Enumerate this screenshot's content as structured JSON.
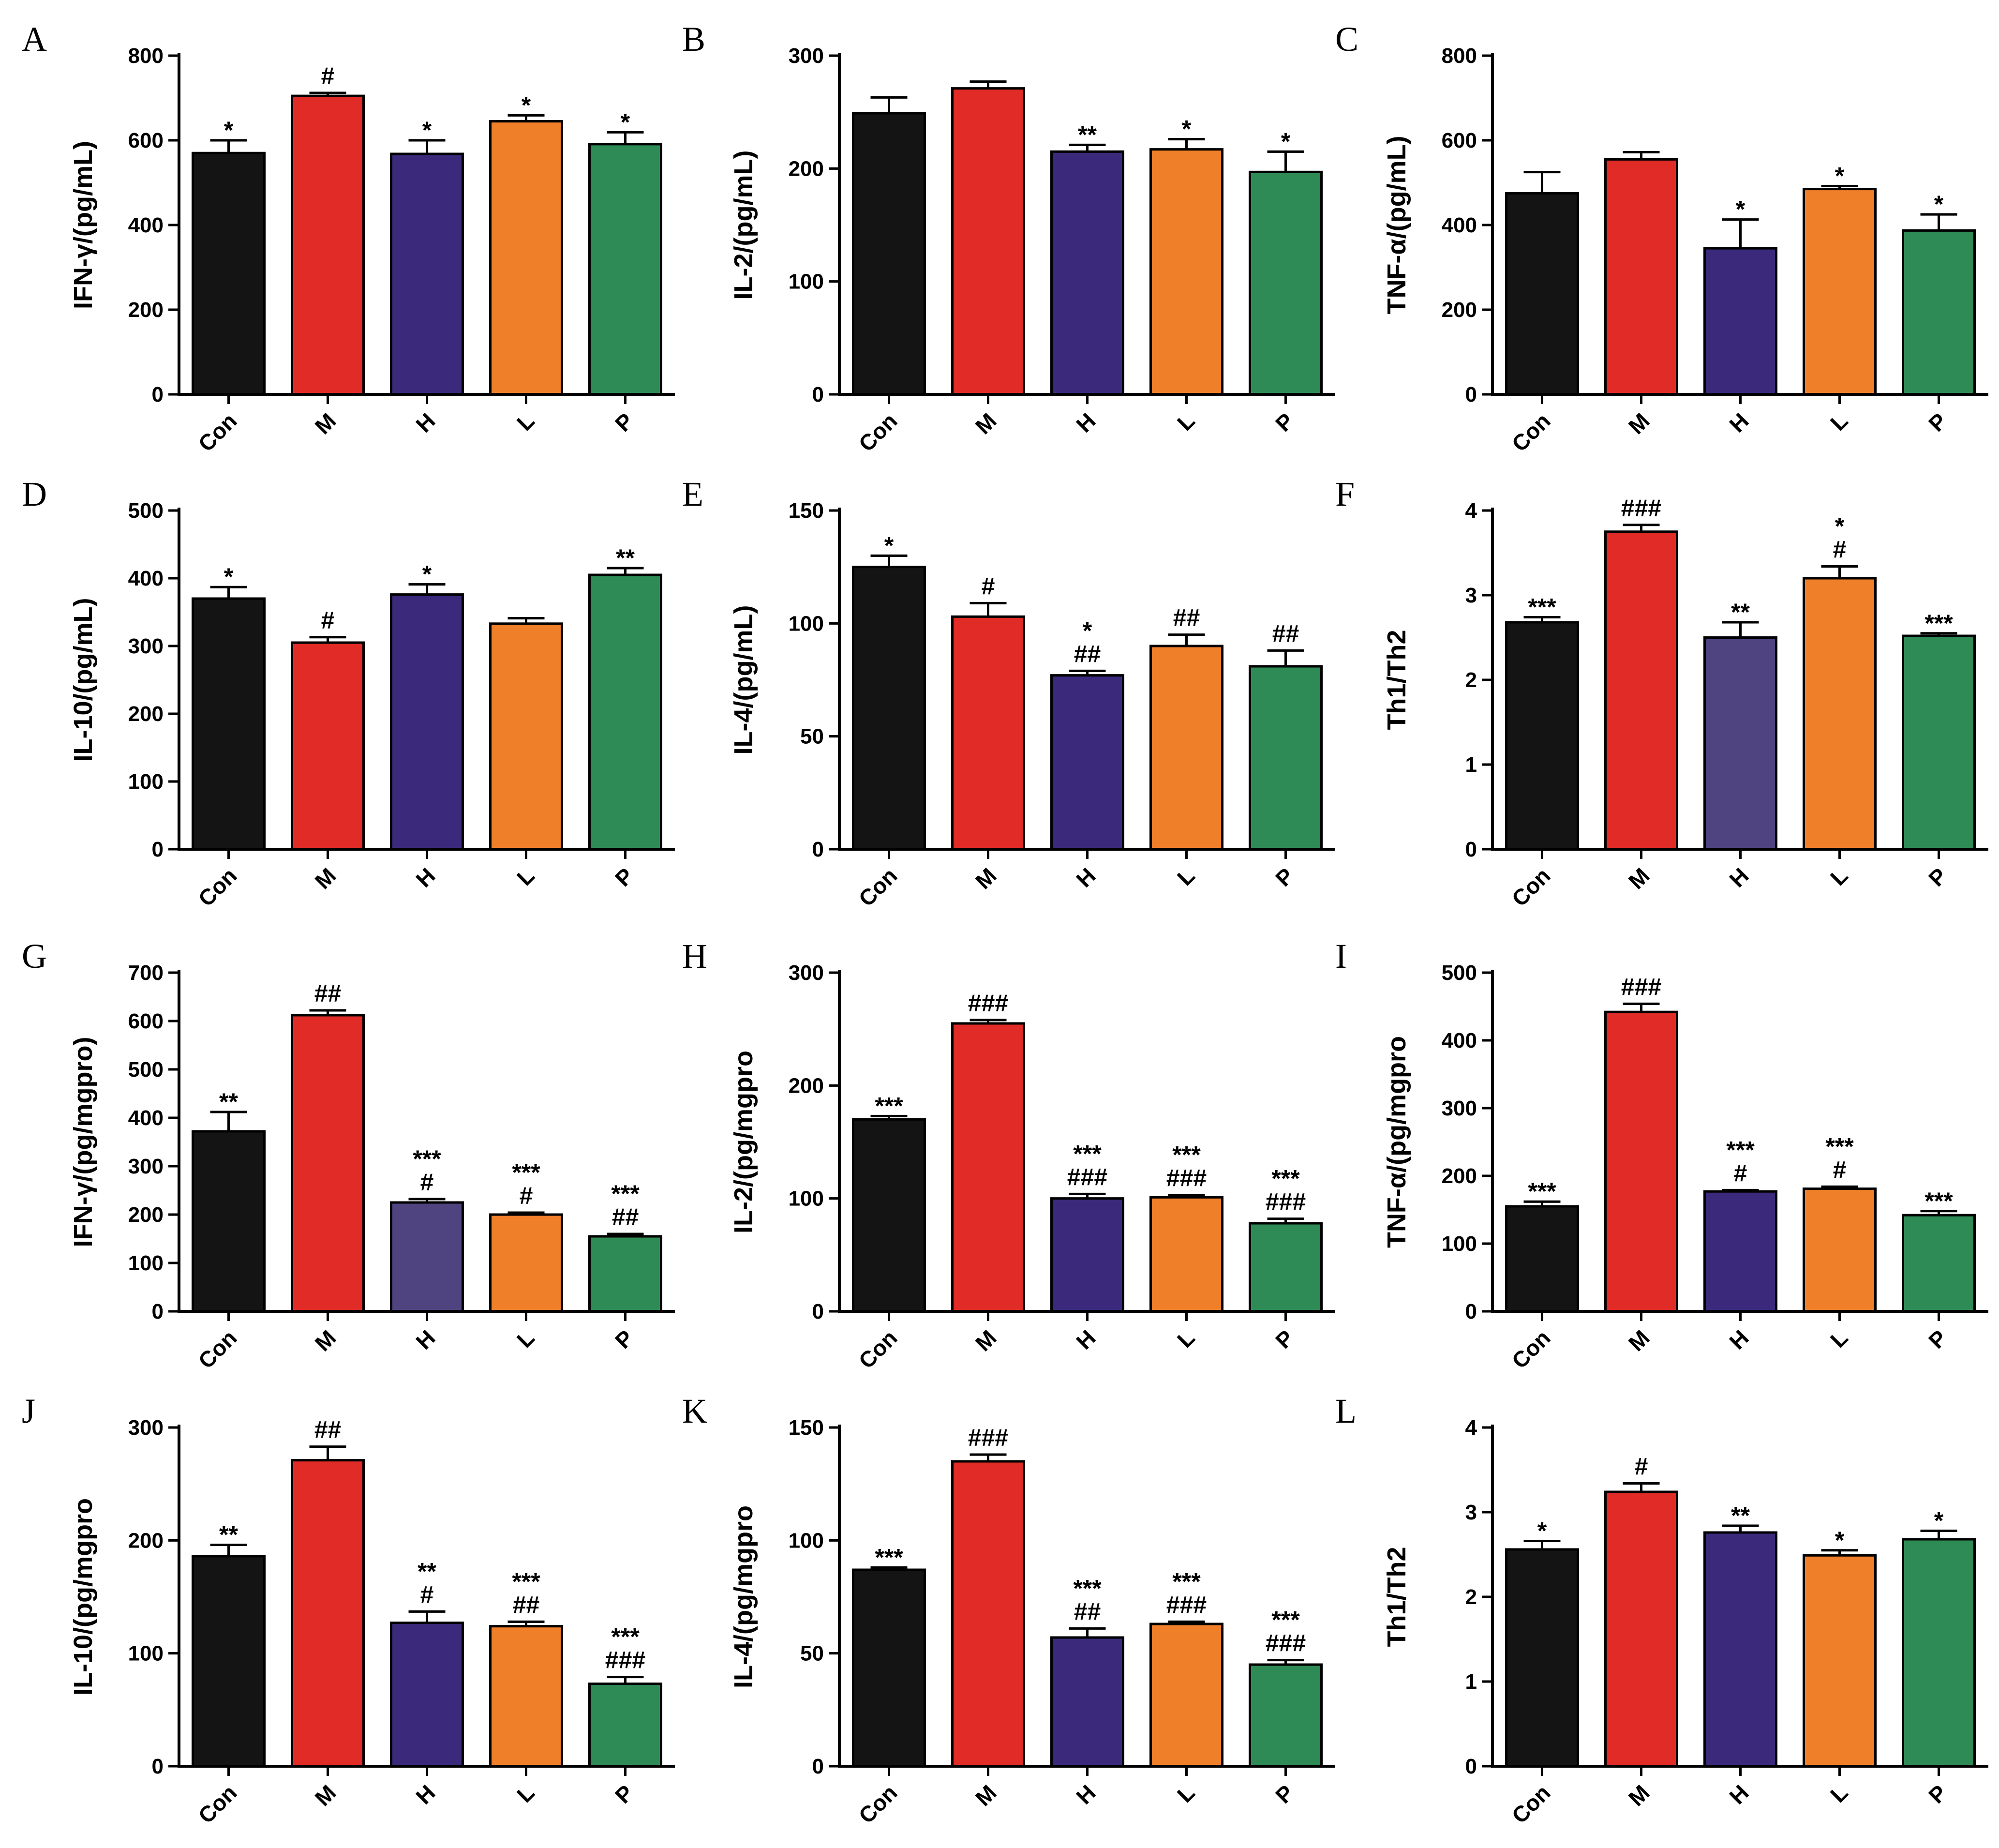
{
  "chart_data": [
    {
      "type": "bar",
      "panel": "A",
      "ylabel": "IFN-γ/(pg/mL)",
      "categories": [
        "Con",
        "M",
        "H",
        "L",
        "P"
      ],
      "values": [
        570,
        705,
        568,
        645,
        591
      ],
      "errors": [
        30,
        7,
        32,
        14,
        28
      ],
      "annotations": [
        [
          "*"
        ],
        [
          "#"
        ],
        [
          "*"
        ],
        [
          "*"
        ],
        [
          "*"
        ]
      ],
      "ylim": [
        0,
        800
      ],
      "yticks": [
        0,
        200,
        400,
        600,
        800
      ]
    },
    {
      "type": "bar",
      "panel": "B",
      "ylabel": "IL-2/(pg/mL)",
      "categories": [
        "Con",
        "M",
        "H",
        "L",
        "P"
      ],
      "values": [
        249,
        271,
        215,
        217,
        197
      ],
      "errors": [
        14,
        6,
        6,
        9,
        18
      ],
      "annotations": [
        [],
        [],
        [
          "**"
        ],
        [
          "*"
        ],
        [
          "*"
        ]
      ],
      "ylim": [
        0,
        300
      ],
      "yticks": [
        0,
        100,
        200,
        300
      ]
    },
    {
      "type": "bar",
      "panel": "C",
      "ylabel": "TNF-α/(pg/mL)",
      "categories": [
        "Con",
        "M",
        "H",
        "L",
        "P"
      ],
      "values": [
        475,
        555,
        345,
        485,
        387
      ],
      "errors": [
        50,
        17,
        68,
        7,
        38
      ],
      "annotations": [
        [],
        [],
        [
          "*"
        ],
        [
          "*"
        ],
        [
          "*"
        ]
      ],
      "ylim": [
        0,
        800
      ],
      "yticks": [
        0,
        200,
        400,
        600,
        800
      ]
    },
    {
      "type": "bar",
      "panel": "D",
      "ylabel": "IL-10/(pg/mL)",
      "categories": [
        "Con",
        "M",
        "H",
        "L",
        "P"
      ],
      "values": [
        370,
        305,
        376,
        333,
        405
      ],
      "errors": [
        17,
        8,
        15,
        8,
        10
      ],
      "annotations": [
        [
          "*"
        ],
        [
          "#"
        ],
        [
          "*"
        ],
        [],
        [
          "**"
        ]
      ],
      "ylim": [
        0,
        500
      ],
      "yticks": [
        0,
        100,
        200,
        300,
        400,
        500
      ]
    },
    {
      "type": "bar",
      "panel": "E",
      "ylabel": "IL-4/(pg/mL)",
      "categories": [
        "Con",
        "M",
        "H",
        "L",
        "P"
      ],
      "values": [
        125,
        103,
        77,
        90,
        81
      ],
      "errors": [
        5,
        6,
        2,
        5,
        7
      ],
      "annotations": [
        [
          "*"
        ],
        [
          "#"
        ],
        [
          "*",
          "##"
        ],
        [
          "##"
        ],
        [
          "##"
        ]
      ],
      "ylim": [
        0,
        150
      ],
      "yticks": [
        0,
        50,
        100,
        150
      ]
    },
    {
      "type": "bar",
      "panel": "F",
      "ylabel": "Th1/Th2",
      "categories": [
        "Con",
        "M",
        "H",
        "L",
        "P"
      ],
      "values": [
        2.68,
        3.75,
        2.5,
        3.2,
        2.52
      ],
      "errors": [
        0.06,
        0.08,
        0.18,
        0.14,
        0.03
      ],
      "annotations": [
        [
          "***"
        ],
        [
          "###"
        ],
        [
          "**"
        ],
        [
          "*",
          "#"
        ],
        [
          "***"
        ]
      ],
      "ylim": [
        0,
        4
      ],
      "yticks": [
        0,
        1,
        2,
        3,
        4
      ]
    },
    {
      "type": "bar",
      "panel": "G",
      "ylabel": "IFN-γ/(pg/mgpro)",
      "categories": [
        "Con",
        "M",
        "H",
        "L",
        "P"
      ],
      "values": [
        372,
        612,
        225,
        200,
        155
      ],
      "errors": [
        40,
        10,
        7,
        4,
        5
      ],
      "annotations": [
        [
          "**"
        ],
        [
          "##"
        ],
        [
          "***",
          "#"
        ],
        [
          "***",
          "#"
        ],
        [
          "***",
          "##"
        ]
      ],
      "ylim": [
        0,
        700
      ],
      "yticks": [
        0,
        100,
        200,
        300,
        400,
        500,
        600,
        700
      ]
    },
    {
      "type": "bar",
      "panel": "H",
      "ylabel": "IL-2/(pg/mgpro",
      "categories": [
        "Con",
        "M",
        "H",
        "L",
        "P"
      ],
      "values": [
        170,
        255,
        100,
        101,
        78
      ],
      "errors": [
        3,
        3,
        4,
        2,
        4
      ],
      "annotations": [
        [
          "***"
        ],
        [
          "###"
        ],
        [
          "***",
          "###"
        ],
        [
          "***",
          "###"
        ],
        [
          "***",
          "###"
        ]
      ],
      "ylim": [
        0,
        300
      ],
      "yticks": [
        0,
        100,
        200,
        300
      ]
    },
    {
      "type": "bar",
      "panel": "I",
      "ylabel": "TNF-α/(pg/mgpro",
      "categories": [
        "Con",
        "M",
        "H",
        "L",
        "P"
      ],
      "values": [
        155,
        442,
        177,
        181,
        142
      ],
      "errors": [
        7,
        12,
        2,
        3,
        6
      ],
      "annotations": [
        [
          "***"
        ],
        [
          "###"
        ],
        [
          "***",
          "#"
        ],
        [
          "***",
          "#"
        ],
        [
          "***"
        ]
      ],
      "ylim": [
        0,
        500
      ],
      "yticks": [
        0,
        100,
        200,
        300,
        400,
        500
      ]
    },
    {
      "type": "bar",
      "panel": "J",
      "ylabel": "IL-10/(pg/mgpro",
      "categories": [
        "Con",
        "M",
        "H",
        "L",
        "P"
      ],
      "values": [
        186,
        271,
        127,
        124,
        73
      ],
      "errors": [
        10,
        12,
        10,
        4,
        6
      ],
      "annotations": [
        [
          "**"
        ],
        [
          "##"
        ],
        [
          "**",
          "#"
        ],
        [
          "***",
          "##"
        ],
        [
          "***",
          "###"
        ]
      ],
      "ylim": [
        0,
        300
      ],
      "yticks": [
        0,
        100,
        200,
        300
      ]
    },
    {
      "type": "bar",
      "panel": "K",
      "ylabel": "IL-4/(pg/mgpro",
      "categories": [
        "Con",
        "M",
        "H",
        "L",
        "P"
      ],
      "values": [
        87,
        135,
        57,
        63,
        45
      ],
      "errors": [
        1,
        3,
        4,
        1,
        2
      ],
      "annotations": [
        [
          "***"
        ],
        [
          "###"
        ],
        [
          "***",
          "##"
        ],
        [
          "***",
          "###"
        ],
        [
          "***",
          "###"
        ]
      ],
      "ylim": [
        0,
        150
      ],
      "yticks": [
        0,
        50,
        100,
        150
      ]
    },
    {
      "type": "bar",
      "panel": "L",
      "ylabel": "Th1/Th2",
      "categories": [
        "Con",
        "M",
        "H",
        "L",
        "P"
      ],
      "values": [
        2.56,
        3.24,
        2.76,
        2.49,
        2.68
      ],
      "errors": [
        0.1,
        0.1,
        0.08,
        0.06,
        0.1
      ],
      "annotations": [
        [
          "*"
        ],
        [
          "#"
        ],
        [
          "**"
        ],
        [
          "*"
        ],
        [
          "*"
        ]
      ],
      "ylim": [
        0,
        4
      ],
      "yticks": [
        0,
        1,
        2,
        3,
        4
      ]
    }
  ],
  "colors": {
    "Con": "#141414",
    "M": "#e02b27",
    "H": "#3b2a7c",
    "H_alt": "#4f4480",
    "L": "#f07f2a",
    "P": "#2f8b56"
  }
}
